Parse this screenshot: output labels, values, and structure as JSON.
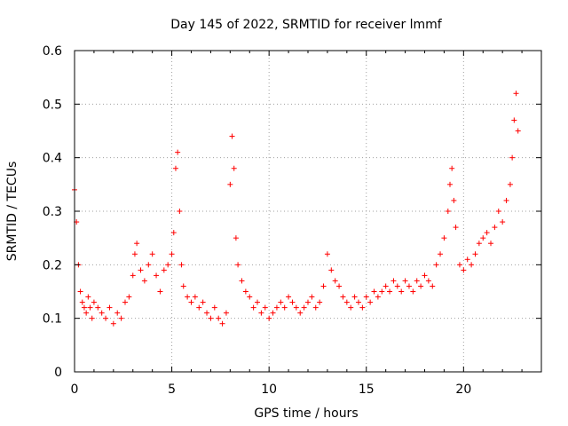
{
  "chart_data": {
    "type": "scatter",
    "title": "Day 145 of 2022, SRMTID for receiver lmmf",
    "xlabel": "GPS time / hours",
    "ylabel": "SRMTID / TECUs",
    "xlim": [
      0,
      24
    ],
    "ylim": [
      0,
      0.6
    ],
    "xticks": [
      0,
      5,
      10,
      15,
      20
    ],
    "xtick_labels": [
      "0",
      "5",
      "10",
      "15",
      "20"
    ],
    "yticks": [
      0,
      0.1,
      0.2,
      0.3,
      0.4,
      0.5,
      0.6
    ],
    "ytick_labels": [
      "0",
      "0.1",
      "0.2",
      "0.3",
      "0.4",
      "0.5",
      "0.6"
    ],
    "grid": true,
    "marker": "+",
    "color": "#ff0000",
    "series": [
      {
        "name": "SRMTID",
        "x": [
          0.0,
          0.1,
          0.2,
          0.3,
          0.4,
          0.5,
          0.6,
          0.7,
          0.8,
          0.9,
          1.0,
          1.2,
          1.4,
          1.6,
          1.8,
          2.0,
          2.2,
          2.4,
          2.6,
          2.8,
          3.0,
          3.1,
          3.2,
          3.4,
          3.6,
          3.8,
          4.0,
          4.2,
          4.4,
          4.6,
          4.8,
          5.0,
          5.1,
          5.2,
          5.3,
          5.4,
          5.5,
          5.6,
          5.8,
          6.0,
          6.2,
          6.4,
          6.6,
          6.8,
          7.0,
          7.2,
          7.4,
          7.6,
          7.8,
          8.0,
          8.1,
          8.2,
          8.3,
          8.4,
          8.6,
          8.8,
          9.0,
          9.2,
          9.4,
          9.6,
          9.8,
          10.0,
          10.2,
          10.4,
          10.6,
          10.8,
          11.0,
          11.2,
          11.4,
          11.6,
          11.8,
          12.0,
          12.2,
          12.4,
          12.6,
          12.8,
          13.0,
          13.2,
          13.4,
          13.6,
          13.8,
          14.0,
          14.2,
          14.4,
          14.6,
          14.8,
          15.0,
          15.2,
          15.4,
          15.6,
          15.8,
          16.0,
          16.2,
          16.4,
          16.6,
          16.8,
          17.0,
          17.2,
          17.4,
          17.6,
          17.8,
          18.0,
          18.2,
          18.4,
          18.6,
          18.8,
          19.0,
          19.2,
          19.3,
          19.4,
          19.5,
          19.6,
          19.8,
          20.0,
          20.2,
          20.4,
          20.6,
          20.8,
          21.0,
          21.2,
          21.4,
          21.6,
          21.8,
          22.0,
          22.2,
          22.4,
          22.5,
          22.6,
          22.7,
          22.8
        ],
        "y": [
          0.34,
          0.28,
          0.2,
          0.15,
          0.13,
          0.12,
          0.11,
          0.14,
          0.12,
          0.1,
          0.13,
          0.12,
          0.11,
          0.1,
          0.12,
          0.09,
          0.11,
          0.1,
          0.13,
          0.14,
          0.18,
          0.22,
          0.24,
          0.19,
          0.17,
          0.2,
          0.22,
          0.18,
          0.15,
          0.19,
          0.2,
          0.22,
          0.26,
          0.38,
          0.41,
          0.3,
          0.2,
          0.16,
          0.14,
          0.13,
          0.14,
          0.12,
          0.13,
          0.11,
          0.1,
          0.12,
          0.1,
          0.09,
          0.11,
          0.35,
          0.44,
          0.38,
          0.25,
          0.2,
          0.17,
          0.15,
          0.14,
          0.12,
          0.13,
          0.11,
          0.12,
          0.1,
          0.11,
          0.12,
          0.13,
          0.12,
          0.14,
          0.13,
          0.12,
          0.11,
          0.12,
          0.13,
          0.14,
          0.12,
          0.13,
          0.16,
          0.22,
          0.19,
          0.17,
          0.16,
          0.14,
          0.13,
          0.12,
          0.14,
          0.13,
          0.12,
          0.14,
          0.13,
          0.15,
          0.14,
          0.15,
          0.16,
          0.15,
          0.17,
          0.16,
          0.15,
          0.17,
          0.16,
          0.15,
          0.17,
          0.16,
          0.18,
          0.17,
          0.16,
          0.2,
          0.22,
          0.25,
          0.3,
          0.35,
          0.38,
          0.32,
          0.27,
          0.2,
          0.19,
          0.21,
          0.2,
          0.22,
          0.24,
          0.25,
          0.26,
          0.24,
          0.27,
          0.3,
          0.28,
          0.32,
          0.35,
          0.4,
          0.47,
          0.52,
          0.45
        ]
      }
    ]
  }
}
